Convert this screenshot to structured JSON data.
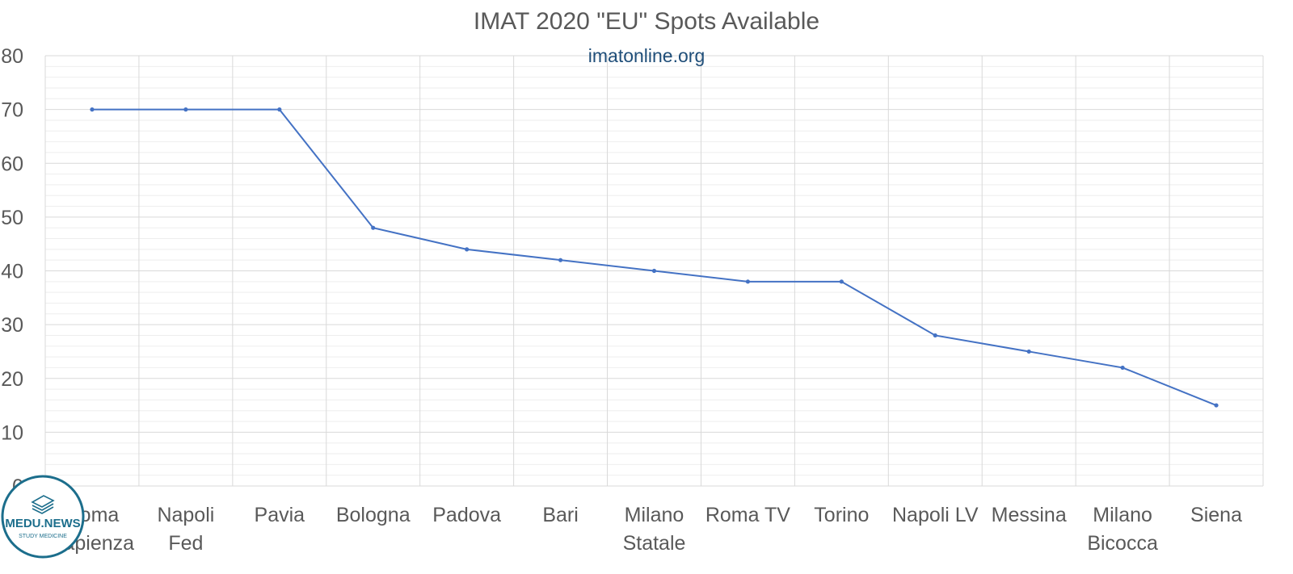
{
  "chart_data": {
    "type": "line",
    "title": "IMAT 2020 \"EU\" Spots Available",
    "subtitle": "imatonline.org",
    "xlabel": "",
    "ylabel": "",
    "ylim": [
      0,
      80
    ],
    "y_major_step": 10,
    "y_minor_step": 2,
    "grid": true,
    "legend": "none",
    "categories": [
      "Roma Sapienza",
      "Napoli Fed",
      "Pavia",
      "Bologna",
      "Padova",
      "Bari",
      "Milano Statale",
      "Roma TV",
      "Torino",
      "Napoli LV",
      "Messina",
      "Milano Bicocca",
      "Siena"
    ],
    "category_lines": [
      [
        "Roma",
        "Sapienza"
      ],
      [
        "Napoli",
        "Fed"
      ],
      [
        "Pavia"
      ],
      [
        "Bologna"
      ],
      [
        "Padova"
      ],
      [
        "Bari"
      ],
      [
        "Milano",
        "Statale"
      ],
      [
        "Roma TV"
      ],
      [
        "Torino"
      ],
      [
        "Napoli LV"
      ],
      [
        "Messina"
      ],
      [
        "Milano",
        "Bicocca"
      ],
      [
        "Siena"
      ]
    ],
    "series": [
      {
        "values": [
          70,
          70,
          70,
          48,
          44,
          42,
          40,
          38,
          38,
          28,
          25,
          22,
          15
        ],
        "color": "#4472c4"
      }
    ]
  },
  "logo": {
    "name": "MEDU.NEWS",
    "tagline": "STUDY MEDICINE",
    "color": "#1c6e8c"
  }
}
